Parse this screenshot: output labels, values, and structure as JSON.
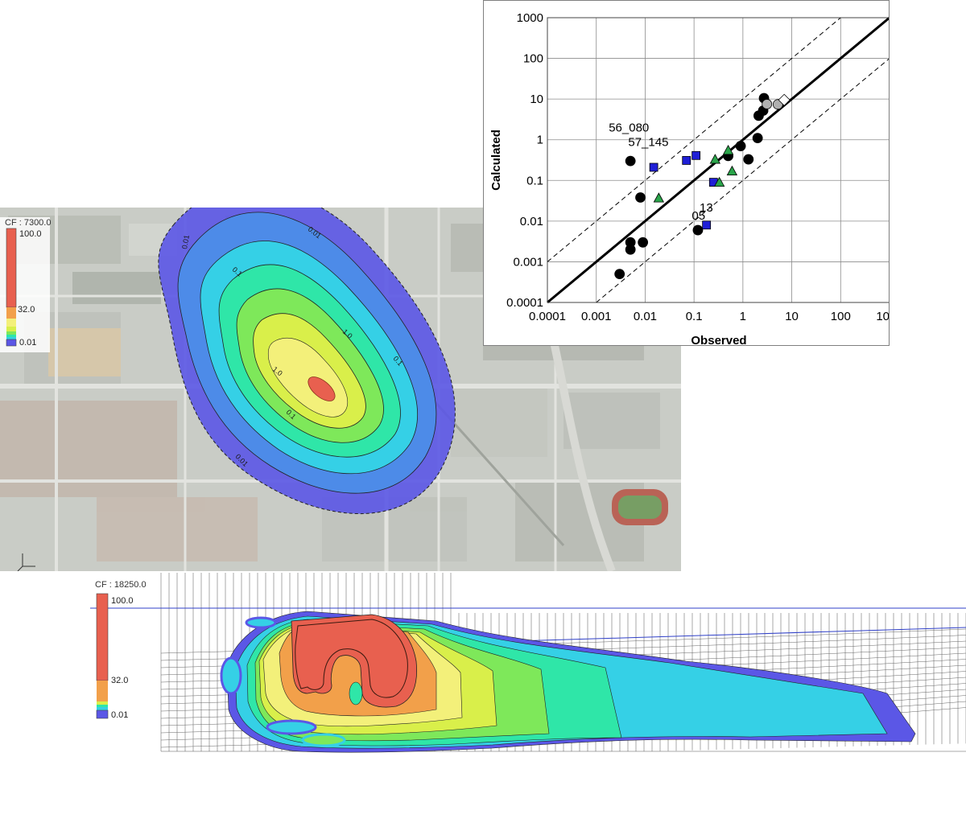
{
  "map_view": {
    "cf_title": "CF : 7300.0",
    "legend": {
      "max_label": "100.0",
      "mid_label": "32.0",
      "min_label": "0.01"
    },
    "contour_labels": [
      "0.01",
      "0.1",
      "1.0",
      "1.0",
      "0.1",
      "0.1",
      "0.01",
      "0.01"
    ],
    "band_colors": [
      "#5b57e6",
      "#4d8be8",
      "#35d0e6",
      "#2fe6a8",
      "#7ee85a",
      "#d9ef4a",
      "#f3f07a",
      "#f2a04a",
      "#e8604f"
    ]
  },
  "section_view": {
    "cf_title": "CF : 18250.0",
    "legend": {
      "max_label": "100.0",
      "mid_label": "32.0",
      "min_label": "0.01"
    }
  },
  "chart_data": {
    "type": "scatter",
    "xlabel": "Observed",
    "ylabel": "Calculated",
    "xscale": "log",
    "yscale": "log",
    "xlim": [
      0.0001,
      1000
    ],
    "ylim": [
      0.0001,
      1000
    ],
    "tick_labels": [
      "0.0001",
      "0.001",
      "0.01",
      "0.1",
      "1",
      "10",
      "100",
      "1000"
    ],
    "grid": true,
    "lines": [
      {
        "style": "solid",
        "slope_factor": 1
      },
      {
        "style": "dashed",
        "slope_factor": 10
      },
      {
        "style": "dashed",
        "slope_factor": 0.1
      }
    ],
    "series": [
      {
        "marker": "circle",
        "color": "#000000",
        "points": [
          [
            0.003,
            0.0005
          ],
          [
            0.005,
            0.002
          ],
          [
            0.005,
            0.003
          ],
          [
            0.009,
            0.003
          ],
          [
            0.008,
            0.038
          ],
          [
            0.005,
            0.3
          ],
          [
            0.12,
            0.006
          ],
          [
            0.5,
            0.4
          ],
          [
            0.9,
            0.7
          ],
          [
            1.3,
            0.33
          ],
          [
            2.0,
            1.1
          ],
          [
            2.1,
            3.9
          ],
          [
            2.6,
            5.2
          ],
          [
            2.7,
            10.5
          ]
        ]
      },
      {
        "marker": "square",
        "color": "#1f1fd6",
        "points": [
          [
            0.015,
            0.21
          ],
          [
            0.07,
            0.31
          ],
          [
            0.11,
            0.41
          ],
          [
            0.18,
            0.008
          ],
          [
            0.25,
            0.09
          ]
        ]
      },
      {
        "marker": "triangle",
        "color": "#2aa44a",
        "points": [
          [
            0.019,
            0.037
          ],
          [
            0.27,
            0.33
          ],
          [
            0.33,
            0.09
          ],
          [
            0.5,
            0.55
          ],
          [
            0.6,
            0.17
          ]
        ]
      },
      {
        "marker": "circle",
        "color": "#b0b0b0",
        "points": [
          [
            3.1,
            7.5
          ],
          [
            5.2,
            7.4
          ]
        ]
      },
      {
        "marker": "diamond",
        "color": "#ffffff",
        "points": [
          [
            7.0,
            9.5
          ]
        ]
      }
    ],
    "annotations": [
      {
        "text": "56_080",
        "x": 0.0018,
        "y": 1.6
      },
      {
        "text": "57_145",
        "x": 0.0045,
        "y": 0.7
      },
      {
        "text": "05",
        "x": 0.09,
        "y": 0.011
      },
      {
        "text": "13",
        "x": 0.13,
        "y": 0.017
      }
    ]
  }
}
